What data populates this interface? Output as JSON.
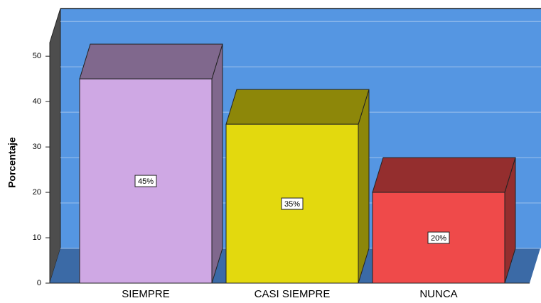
{
  "chart_data": {
    "type": "bar3d",
    "ylabel": "Porcentaje",
    "categories": [
      "SIEMPRE",
      "CASI SIEMPRE",
      "NUNCA"
    ],
    "values": [
      45,
      35,
      20
    ],
    "value_labels": [
      "45%",
      "35%",
      "20%"
    ],
    "colors": [
      "#cfa8e4",
      "#e3d90e",
      "#ef4a4a"
    ],
    "ylim": [
      0,
      53
    ],
    "yticks": [
      0,
      10,
      20,
      30,
      40,
      50
    ],
    "grid": true
  }
}
